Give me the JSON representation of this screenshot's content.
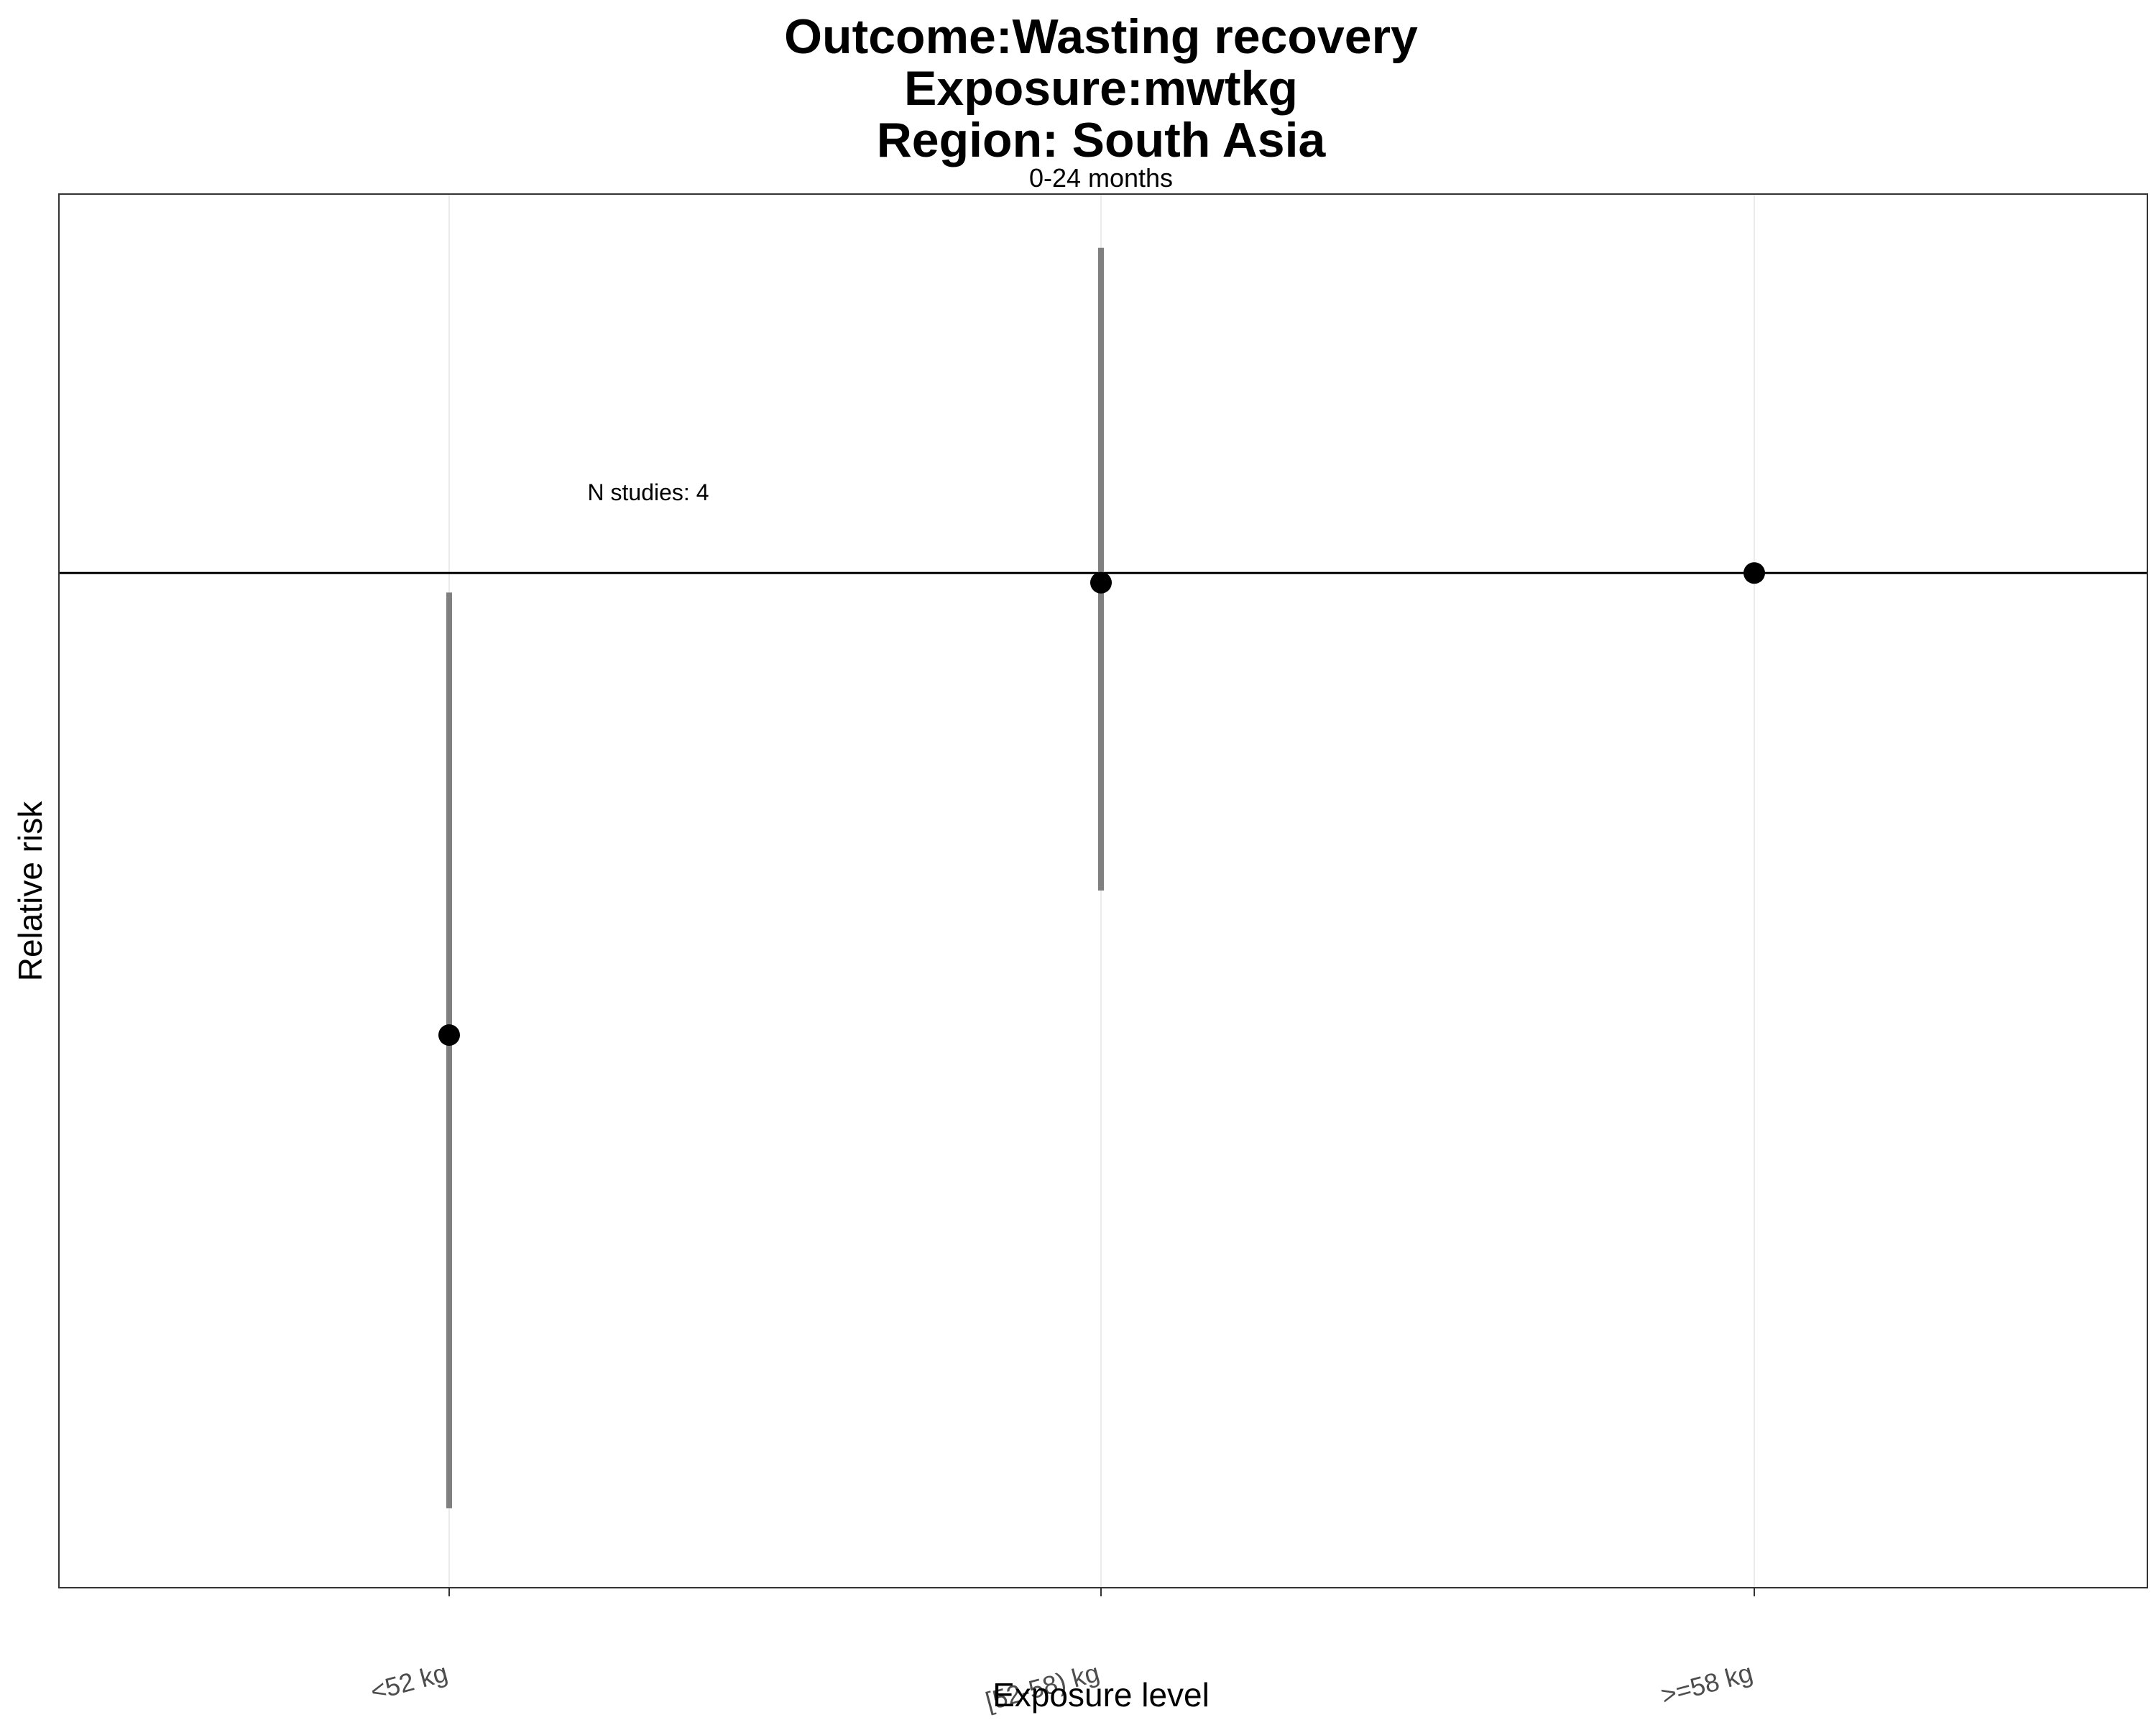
{
  "chart_data": {
    "type": "scatter",
    "title_lines": [
      "Outcome:Wasting recovery",
      "Exposure:mwtkg",
      "Region: South Asia"
    ],
    "facet_label": "0-24 months",
    "xlabel": "Exposure level",
    "ylabel": "Relative risk",
    "categories": [
      "<52 kg",
      "[52-58) kg",
      ">=58 kg"
    ],
    "series": [
      {
        "points": [
          {
            "category": "<52 kg",
            "rr": 0.62,
            "ci_lower": 0.38,
            "ci_upper": 0.98
          },
          {
            "category": "[52-58) kg",
            "rr": 0.99,
            "ci_lower": 0.72,
            "ci_upper": 1.4
          },
          {
            "category": ">=58 kg",
            "rr": 1.0,
            "ci_lower": null,
            "ci_upper": null
          }
        ]
      }
    ],
    "reference_line": 1,
    "ylim": [
      0.35,
      1.48
    ],
    "y_scale": "log",
    "y_tick_labels_shown": false,
    "grid": "vertical major only",
    "annotation": "N studies: 4",
    "colors": {
      "point": "#000000",
      "ci": "#808080",
      "grid": "#ebebeb",
      "reference": "#000000",
      "tick_label": "#4d4d4d"
    }
  }
}
